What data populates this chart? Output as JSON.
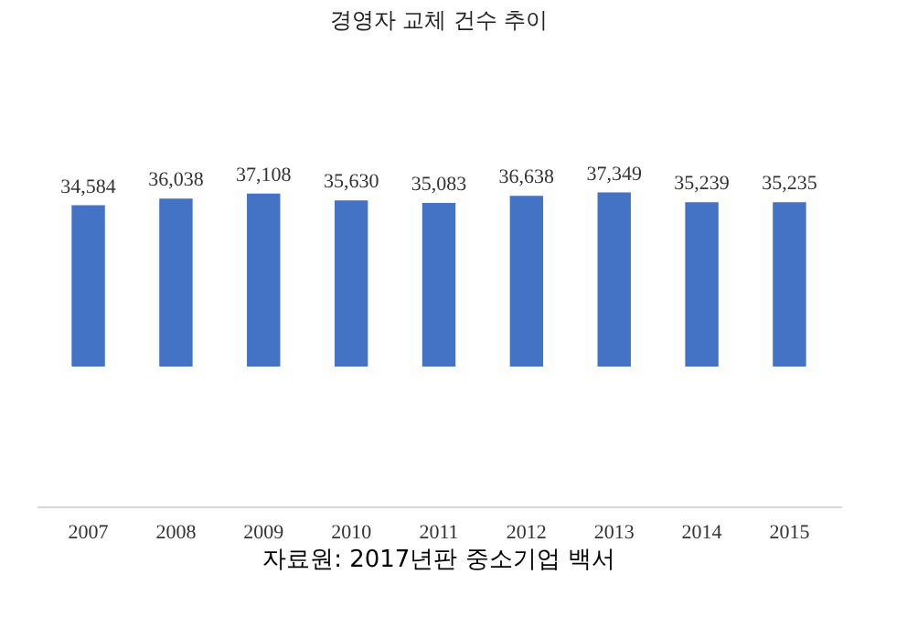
{
  "chart_data": {
    "type": "bar",
    "title": "경영자 교체 건수 추이",
    "categories": [
      "2007",
      "2008",
      "2009",
      "2010",
      "2011",
      "2012",
      "2013",
      "2014",
      "2015"
    ],
    "values": [
      34584,
      36038,
      37108,
      35630,
      35083,
      36638,
      37349,
      35239,
      35235
    ],
    "color": "#4472c4",
    "tick_labels": "x",
    "grid": false,
    "value_labels": [
      "34,584",
      "36,038",
      "37,108",
      "35,630",
      "35,083",
      "36,638",
      "37,349",
      "35,239",
      "35,235"
    ],
    "annotations": [
      "자료원: 2017년판 중소기업 백서"
    ]
  }
}
